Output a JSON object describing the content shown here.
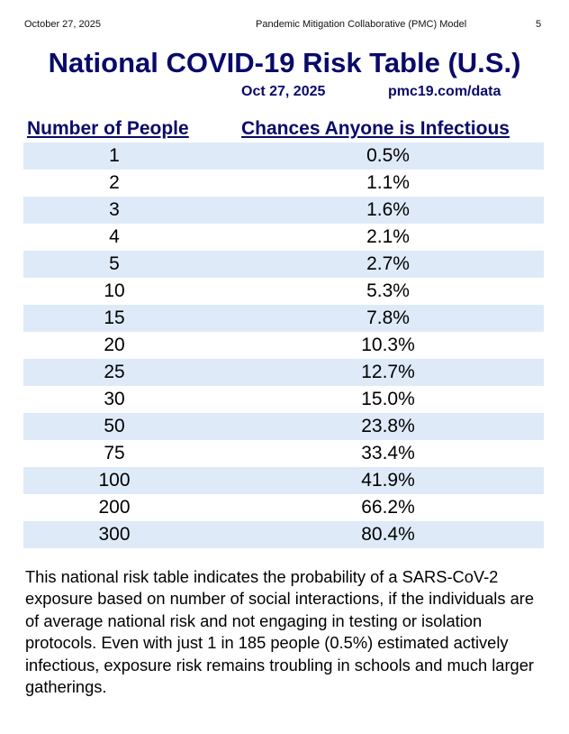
{
  "header": {
    "date": "October 27, 2025",
    "source": "Pandemic Mitigation Collaborative (PMC) Model",
    "page": "5"
  },
  "title": "National COVID-19 Risk Table (U.S.)",
  "subtitle": {
    "date": "Oct 27, 2025",
    "url": "pmc19.com/data"
  },
  "table": {
    "headers": [
      "Number of People",
      "Chances Anyone is Infectious"
    ],
    "rows": [
      [
        "1",
        "0.5%"
      ],
      [
        "2",
        "1.1%"
      ],
      [
        "3",
        "1.6%"
      ],
      [
        "4",
        "2.1%"
      ],
      [
        "5",
        "2.7%"
      ],
      [
        "10",
        "5.3%"
      ],
      [
        "15",
        "7.8%"
      ],
      [
        "20",
        "10.3%"
      ],
      [
        "25",
        "12.7%"
      ],
      [
        "30",
        "15.0%"
      ],
      [
        "50",
        "23.8%"
      ],
      [
        "75",
        "33.4%"
      ],
      [
        "100",
        "41.9%"
      ],
      [
        "200",
        "66.2%"
      ],
      [
        "300",
        "80.4%"
      ]
    ]
  },
  "paragraph": "This national risk table indicates the probability of a SARS-CoV-2 exposure based on number of social interactions, if the individuals are of average national risk and not engaging in testing or isolation protocols. Even with just 1 in 185 people (0.5%) estimated actively infectious, exposure risk remains troubling in schools and much larger gatherings.",
  "colors": {
    "title": "#0a0a6a",
    "band": "#deeaf8"
  }
}
